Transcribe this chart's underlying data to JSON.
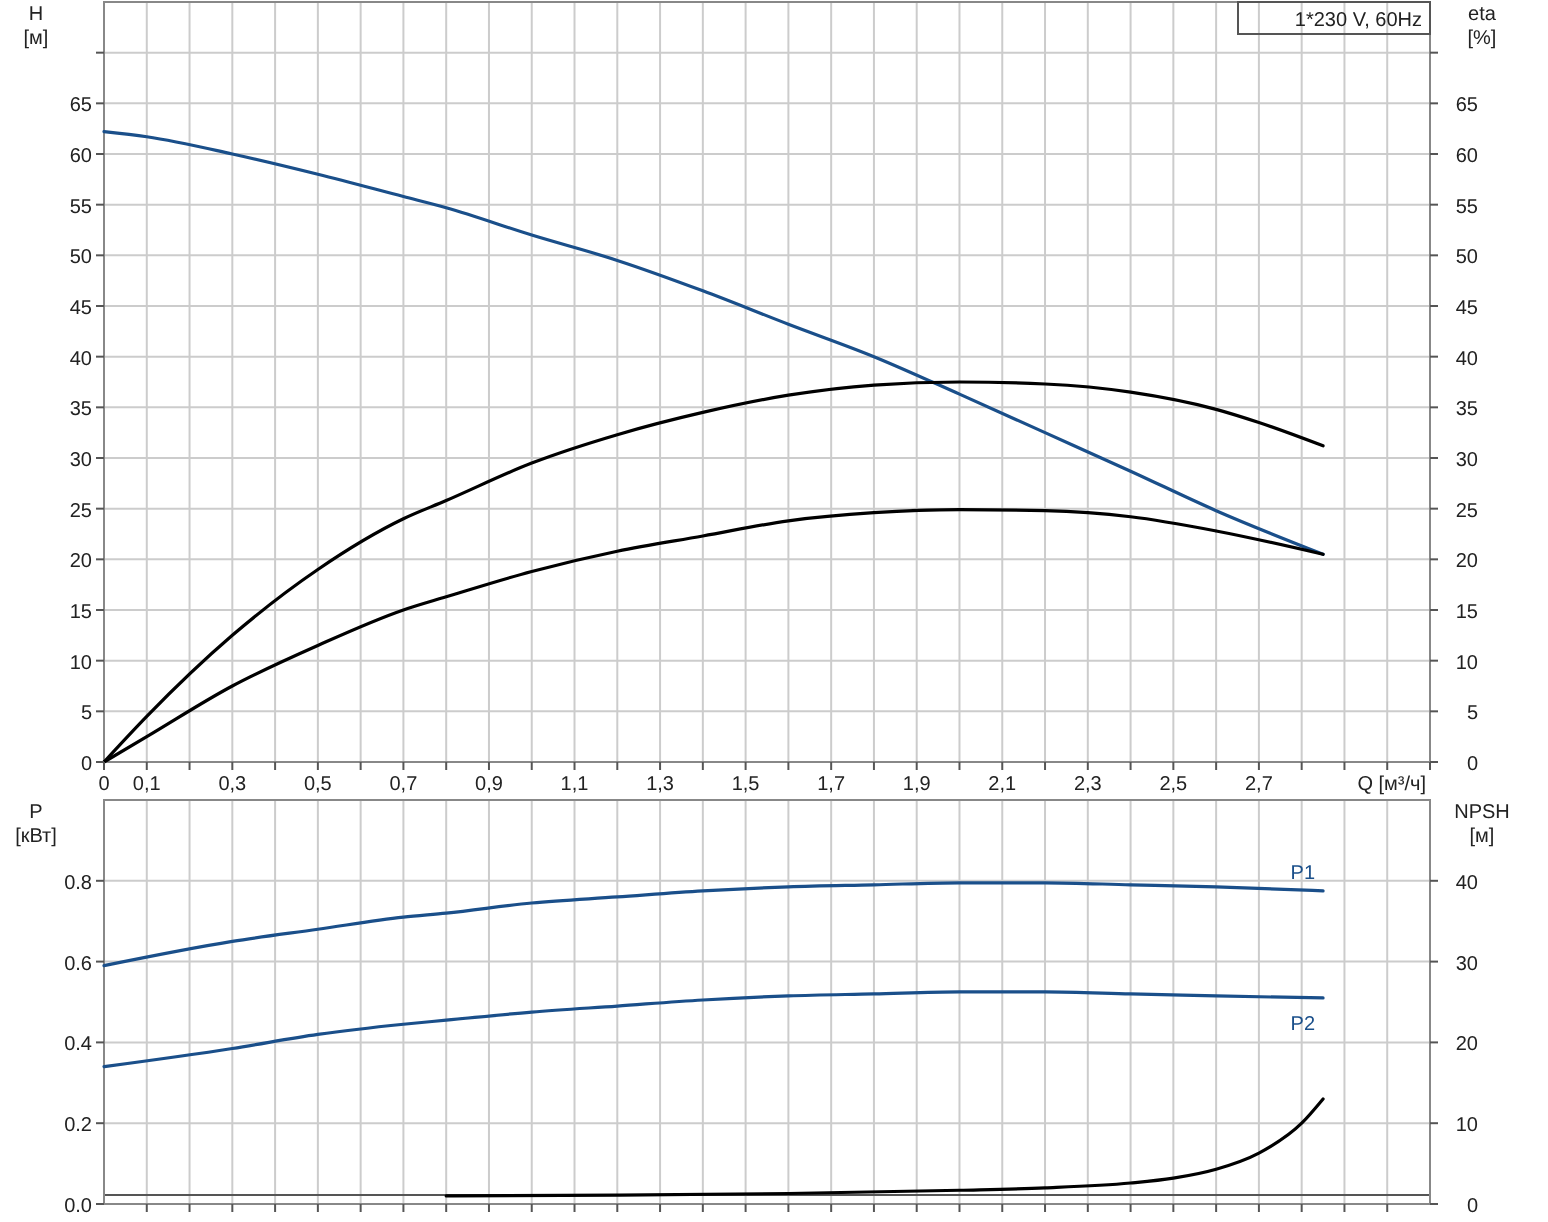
{
  "chart_data": [
    {
      "type": "line",
      "title": "1*230 V, 60Hz",
      "xlabel": "Q [м³/ч]",
      "ylabel": "H [м]",
      "y2label": "eta [%]",
      "xlim": [
        0,
        3.1
      ],
      "xticks": [
        0,
        {
          "value": 0.1,
          "label": "0,1"
        },
        {
          "value": 0.2,
          "label": null
        },
        {
          "value": 0.3,
          "label": "0,3"
        },
        {
          "value": 0.4,
          "label": null
        },
        {
          "value": 0.5,
          "label": "0,5"
        },
        {
          "value": 0.6,
          "label": null
        },
        {
          "value": 0.7,
          "label": "0,7"
        },
        {
          "value": 0.8,
          "label": null
        },
        {
          "value": 0.9,
          "label": "0,9"
        },
        {
          "value": 1.0,
          "label": null
        },
        {
          "value": 1.1,
          "label": "1,1"
        },
        {
          "value": 1.2,
          "label": null
        },
        {
          "value": 1.3,
          "label": "1,3"
        },
        {
          "value": 1.4,
          "label": null
        },
        {
          "value": 1.5,
          "label": "1,5"
        },
        {
          "value": 1.6,
          "label": null
        },
        {
          "value": 1.7,
          "label": "1,7"
        },
        {
          "value": 1.8,
          "label": null
        },
        {
          "value": 1.9,
          "label": "1,9"
        },
        {
          "value": 2.0,
          "label": null
        },
        {
          "value": 2.1,
          "label": "2,1"
        },
        {
          "value": 2.2,
          "label": null
        },
        {
          "value": 2.3,
          "label": "2,3"
        },
        {
          "value": 2.4,
          "label": null
        },
        {
          "value": 2.5,
          "label": "2,5"
        },
        {
          "value": 2.6,
          "label": null
        },
        {
          "value": 2.7,
          "label": "2,7"
        },
        {
          "value": 2.8,
          "label": null
        },
        {
          "value": 2.9,
          "label": null
        },
        {
          "value": 3.0,
          "label": null
        },
        {
          "value": 3.1,
          "label": null
        }
      ],
      "ylim": [
        0,
        75
      ],
      "yticks": [
        0,
        5,
        10,
        15,
        20,
        25,
        30,
        35,
        40,
        45,
        50,
        55,
        60,
        65,
        {
          "value": 70,
          "label": null
        }
      ],
      "y2lim": [
        0,
        75
      ],
      "y2ticks": [
        0,
        5,
        10,
        15,
        20,
        25,
        30,
        35,
        40,
        45,
        50,
        55,
        60,
        65,
        {
          "value": 70,
          "label": null
        }
      ],
      "grid": true,
      "series": [
        {
          "color": "#1a4f8a",
          "x": [
            0,
            0.1,
            0.3,
            0.5,
            0.7,
            0.8,
            1.0,
            1.2,
            1.4,
            1.6,
            1.8,
            2.0,
            2.2,
            2.4,
            2.6,
            2.85
          ],
          "values": [
            62.2,
            61.7,
            60,
            58,
            55.8,
            54.7,
            52,
            49.5,
            46.5,
            43.2,
            40,
            36.3,
            32.5,
            28.7,
            24.8,
            20.5
          ]
        },
        {
          "color": "#000000",
          "axis": "y2",
          "x": [
            0,
            0.1,
            0.3,
            0.5,
            0.7,
            0.8,
            1.0,
            1.2,
            1.4,
            1.6,
            1.8,
            2.0,
            2.2,
            2.4,
            2.6,
            2.7,
            2.85
          ],
          "values": [
            0,
            4.5,
            12.5,
            19,
            24,
            25.8,
            29.5,
            32.3,
            34.5,
            36.2,
            37.2,
            37.5,
            37.3,
            36.5,
            34.8,
            33.5,
            31.2
          ]
        },
        {
          "color": "#000000",
          "axis": "y2",
          "x": [
            0,
            0.1,
            0.3,
            0.5,
            0.7,
            0.8,
            1.0,
            1.2,
            1.4,
            1.6,
            1.8,
            2.0,
            2.2,
            2.4,
            2.6,
            2.85
          ],
          "values": [
            0,
            2.5,
            7.5,
            11.5,
            15,
            16.3,
            18.8,
            20.8,
            22.3,
            23.8,
            24.6,
            24.9,
            24.8,
            24.2,
            22.8,
            20.5
          ]
        }
      ]
    },
    {
      "type": "line",
      "ylabel": "P [кВт]",
      "y2label": "NPSH [м]",
      "tick_labels": "y",
      "xlim": [
        0,
        3.1
      ],
      "xticks": [
        {
          "value": 0.1,
          "label": null
        },
        {
          "value": 0.2,
          "label": null
        },
        {
          "value": 0.3,
          "label": null
        },
        {
          "value": 0.4,
          "label": null
        },
        {
          "value": 0.5,
          "label": null
        },
        {
          "value": 0.6,
          "label": null
        },
        {
          "value": 0.7,
          "label": null
        },
        {
          "value": 0.8,
          "label": null
        },
        {
          "value": 0.9,
          "label": null
        },
        {
          "value": 1.0,
          "label": null
        },
        {
          "value": 1.1,
          "label": null
        },
        {
          "value": 1.2,
          "label": null
        },
        {
          "value": 1.3,
          "label": null
        },
        {
          "value": 1.4,
          "label": null
        },
        {
          "value": 1.5,
          "label": null
        },
        {
          "value": 1.6,
          "label": null
        },
        {
          "value": 1.7,
          "label": null
        },
        {
          "value": 1.8,
          "label": null
        },
        {
          "value": 1.9,
          "label": null
        },
        {
          "value": 2.0,
          "label": null
        },
        {
          "value": 2.1,
          "label": null
        },
        {
          "value": 2.2,
          "label": null
        },
        {
          "value": 2.3,
          "label": null
        },
        {
          "value": 2.4,
          "label": null
        },
        {
          "value": 2.5,
          "label": null
        },
        {
          "value": 2.6,
          "label": null
        },
        {
          "value": 2.7,
          "label": null
        },
        {
          "value": 2.8,
          "label": null
        },
        {
          "value": 2.9,
          "label": null
        },
        {
          "value": 3.0,
          "label": null
        }
      ],
      "ylim": [
        0,
        1.0
      ],
      "yticks": [
        {
          "value": 0,
          "label": "0.0"
        },
        {
          "value": 0.2,
          "label": "0.2"
        },
        {
          "value": 0.4,
          "label": "0.4"
        },
        {
          "value": 0.6,
          "label": "0.6"
        },
        {
          "value": 0.8,
          "label": "0.8"
        }
      ],
      "y2lim": [
        0,
        50
      ],
      "y2ticks": [
        0,
        10,
        20,
        30,
        40
      ],
      "grid": true,
      "ref_lines": [
        {
          "axis": "y2",
          "value": 1.1,
          "color": "#555555"
        }
      ],
      "series": [
        {
          "name": "P1",
          "color": "#1a4f8a",
          "x": [
            0,
            0.3,
            0.5,
            0.7,
            0.8,
            1.0,
            1.2,
            1.4,
            1.6,
            1.8,
            2.0,
            2.2,
            2.4,
            2.6,
            2.85
          ],
          "values": [
            0.59,
            0.65,
            0.68,
            0.71,
            0.72,
            0.745,
            0.76,
            0.775,
            0.785,
            0.79,
            0.795,
            0.795,
            0.79,
            0.785,
            0.775
          ]
        },
        {
          "name": "P2",
          "color": "#1a4f8a",
          "x": [
            0,
            0.3,
            0.5,
            0.7,
            0.8,
            1.0,
            1.2,
            1.4,
            1.6,
            1.8,
            2.0,
            2.2,
            2.4,
            2.6,
            2.85
          ],
          "values": [
            0.34,
            0.385,
            0.42,
            0.445,
            0.455,
            0.475,
            0.49,
            0.505,
            0.515,
            0.52,
            0.525,
            0.525,
            0.52,
            0.515,
            0.51
          ]
        },
        {
          "color": "#000000",
          "axis": "y2",
          "x": [
            0.8,
            1.2,
            1.6,
            2.0,
            2.2,
            2.4,
            2.5,
            2.6,
            2.7,
            2.8,
            2.85
          ],
          "values": [
            1.0,
            1.1,
            1.3,
            1.7,
            2.0,
            2.6,
            3.2,
            4.3,
            6.3,
            10,
            13
          ]
        }
      ]
    }
  ]
}
